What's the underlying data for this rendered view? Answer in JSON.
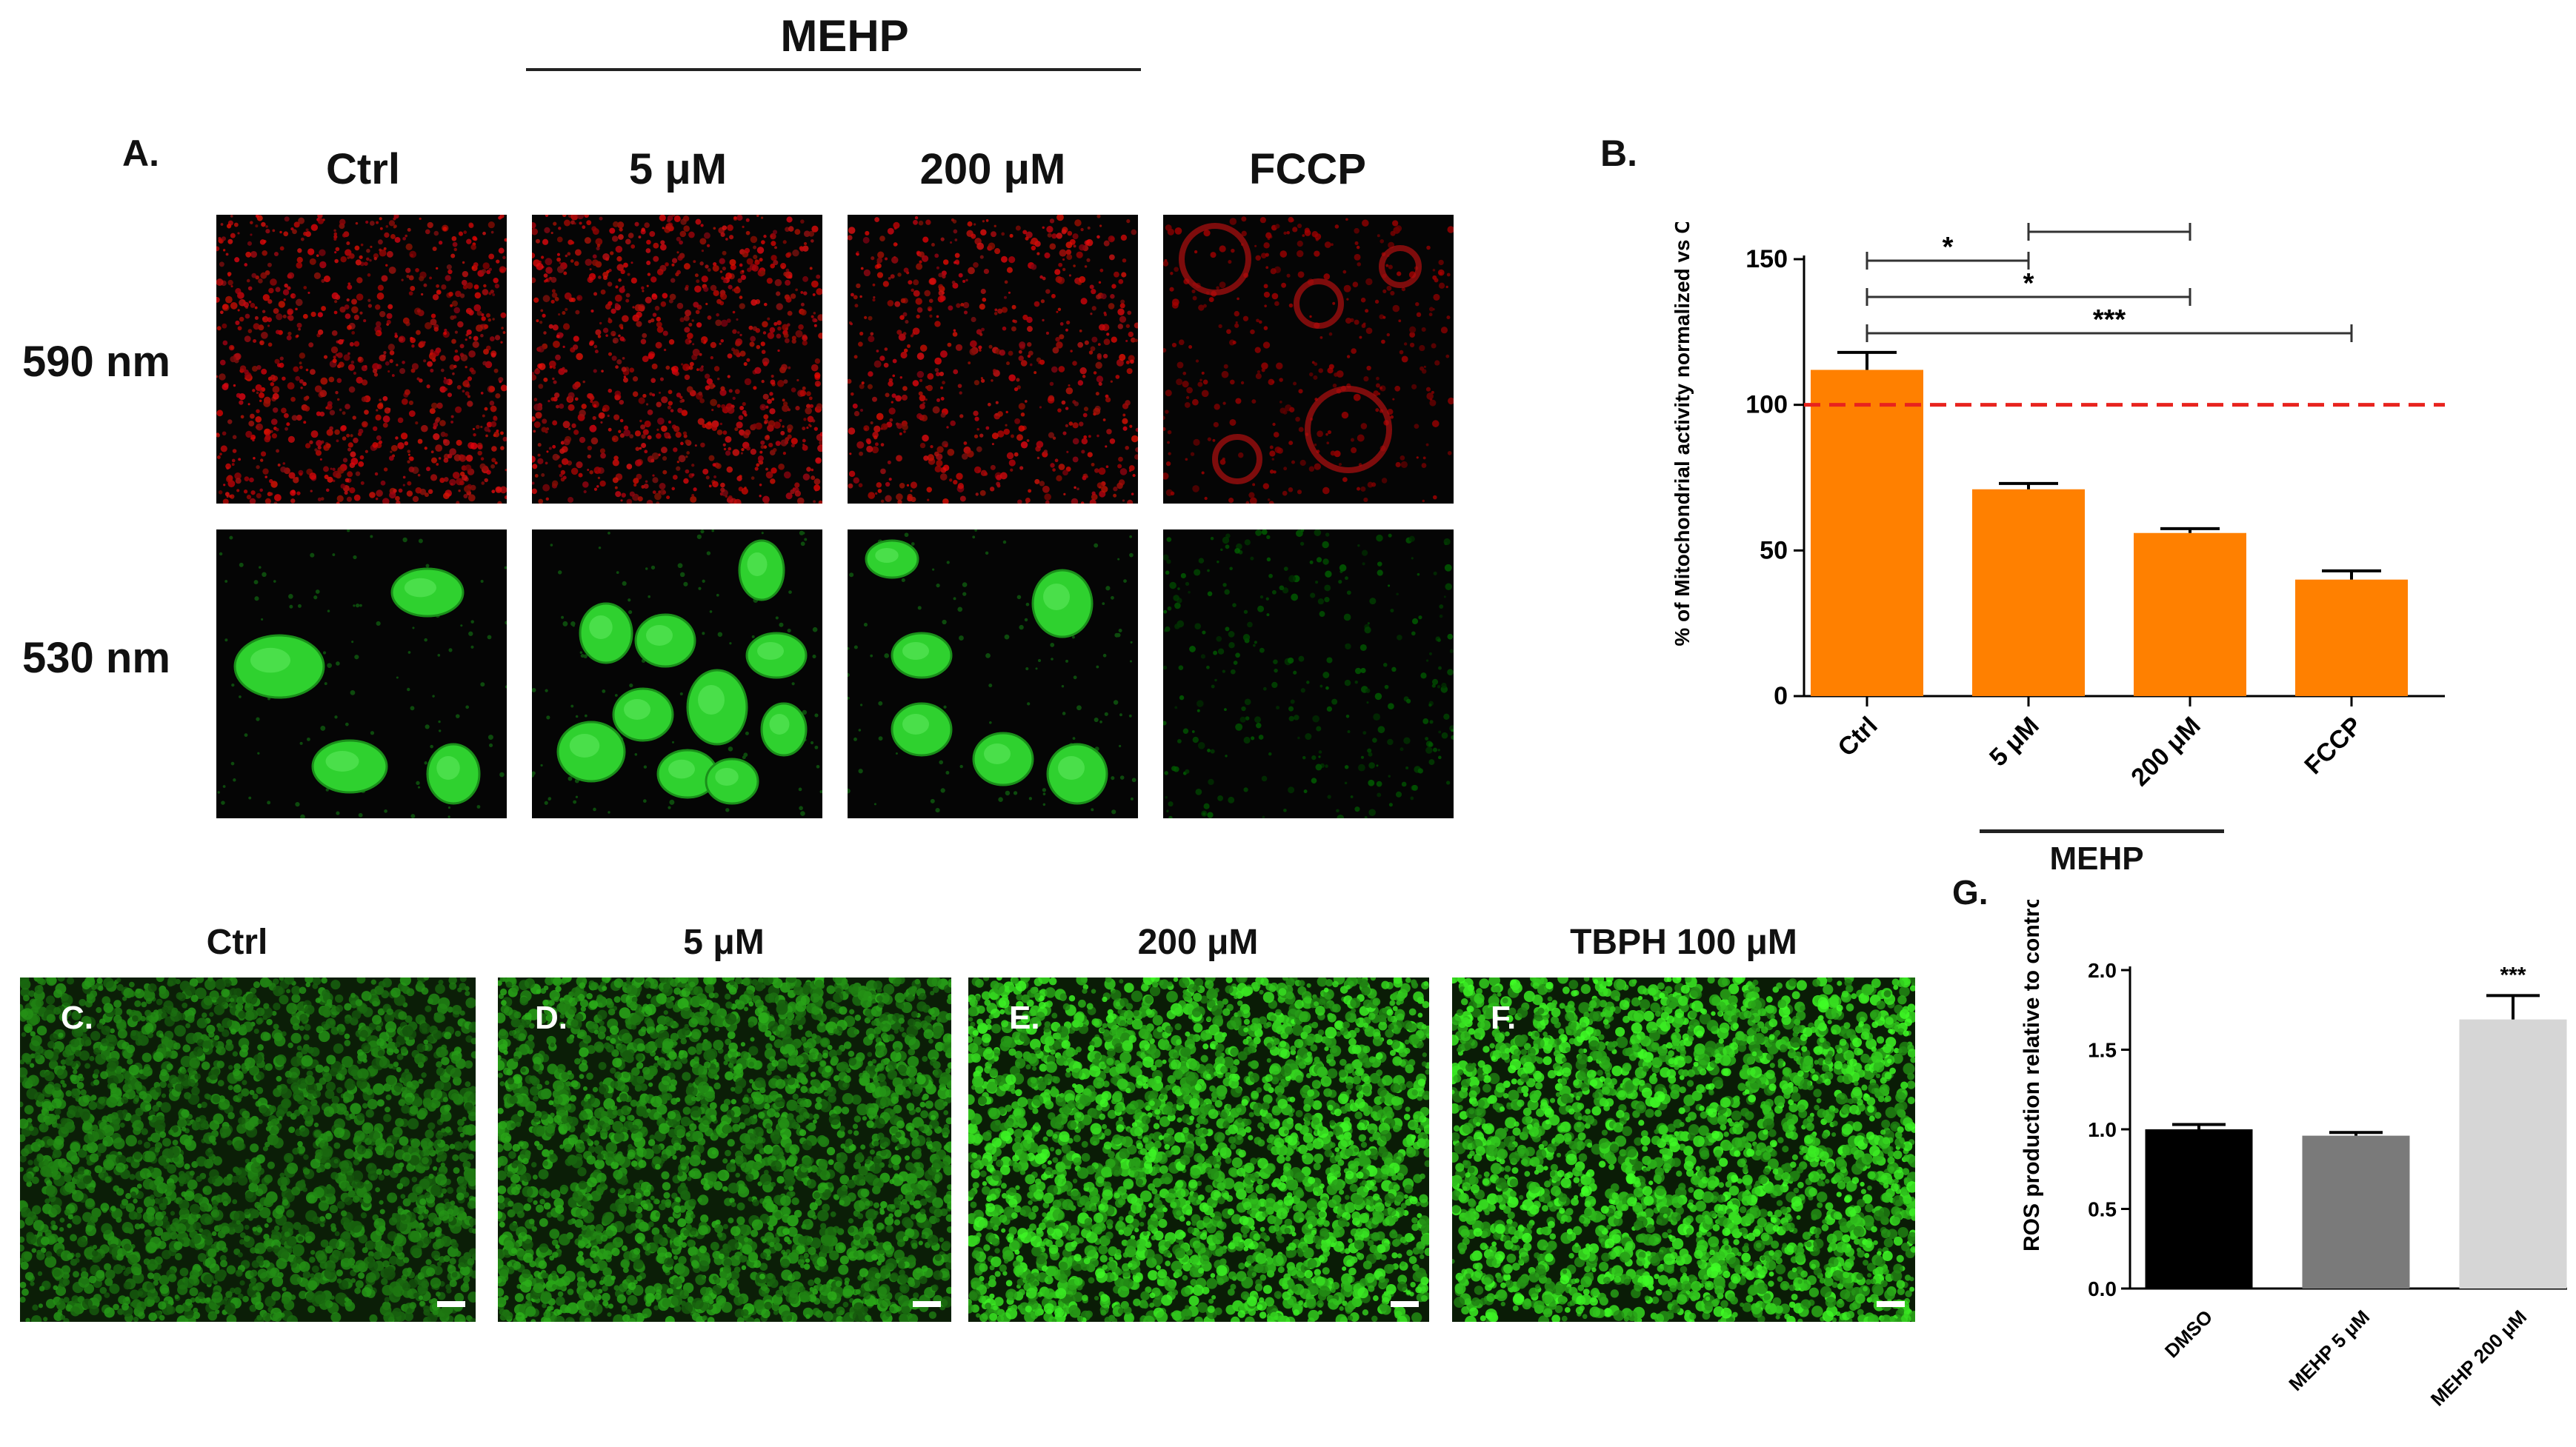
{
  "figure": {
    "mehp_header": "MEHP",
    "panelA": {
      "letter": "A.",
      "columns": [
        "Ctrl",
        "5 μM",
        "200 μM",
        "FCCP"
      ],
      "rows": [
        "590 nm",
        "530 nm"
      ]
    },
    "panelB": {
      "letter": "B.",
      "group_label": "MEHP",
      "significance": [
        "***",
        "*",
        "*",
        "*"
      ]
    },
    "panelsCF": [
      {
        "letter": "C.",
        "title": "Ctrl"
      },
      {
        "letter": "D.",
        "title": "5 μM"
      },
      {
        "letter": "E.",
        "title": "200 μM"
      },
      {
        "letter": "F.",
        "title": "TBPH 100 μM"
      }
    ],
    "panelG": {
      "letter": "G.",
      "significance": "***"
    }
  },
  "chart_data": [
    {
      "type": "bar",
      "categories": [
        "Ctrl",
        "5 μM",
        "200 μM",
        "FCCP"
      ],
      "values": [
        112,
        71,
        56,
        40
      ],
      "errors": [
        6,
        2,
        1.5,
        3
      ],
      "ylabel": "% of Mitochondrial activity normalized vs Ctrl",
      "ylim": [
        0,
        150
      ],
      "yticks": [
        0,
        50,
        100,
        150
      ],
      "reference_line": 100,
      "bar_color": "#ff8000",
      "reference_color": "#e8231e"
    },
    {
      "type": "bar",
      "categories": [
        "DMSO",
        "MEHP 5 μM",
        "MEHP 200 μM"
      ],
      "values": [
        1.0,
        0.96,
        1.69
      ],
      "errors": [
        0.03,
        0.02,
        0.15
      ],
      "ylabel": "ROS production relative to control",
      "ylim": [
        0,
        2.0
      ],
      "yticks": [
        "0.0",
        "0.5",
        "1.0",
        "1.5",
        "2.0"
      ],
      "colors": [
        "#000000",
        "#7a7a7a",
        "#d6d6d6"
      ]
    }
  ]
}
